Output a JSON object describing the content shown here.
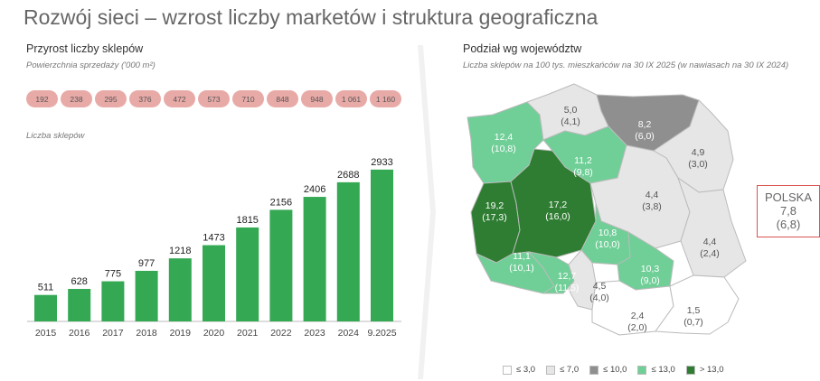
{
  "header": {
    "title": "Rozwój sieci – wzrost liczby marketów i struktura geograficzna"
  },
  "left": {
    "title": "Przyrost liczby sklepów",
    "area_label": "Powierzchnia sprzedaży ('000 m²)",
    "area_values": [
      "192",
      "238",
      "295",
      "376",
      "472",
      "573",
      "710",
      "848",
      "948",
      "1 061",
      "1 160"
    ],
    "count_label": "Liczba sklepów"
  },
  "right": {
    "title": "Podział wg województw",
    "subtitle": "Liczba sklepów na 100 tys. mieszkańców na 30 IX 2025 (w nawiasach na 30 IX 2024)",
    "polska_label": "POLSKA",
    "polska_value": "7,8",
    "polska_prev": "(6,8)",
    "legend": [
      {
        "label": "≤ 3,0",
        "color": "#ffffff"
      },
      {
        "label": "≤ 7,0",
        "color": "#e6e6e6"
      },
      {
        "label": "≤ 10,0",
        "color": "#8f8f8f"
      },
      {
        "label": "≤ 13,0",
        "color": "#6fcf97"
      },
      {
        "label": "> 13,0",
        "color": "#2e7d32"
      }
    ]
  },
  "chart_data": [
    {
      "type": "bar",
      "categories": [
        "2015",
        "2016",
        "2017",
        "2018",
        "2019",
        "2020",
        "2021",
        "2022",
        "2023",
        "2024",
        "9.2025"
      ],
      "values": [
        511,
        628,
        775,
        977,
        1218,
        1473,
        1815,
        2156,
        2406,
        2688,
        2933
      ],
      "title": "Liczba sklepów",
      "color": "#34a853"
    },
    {
      "type": "heatmap",
      "title": "Podział wg województw",
      "regions": [
        {
          "name": "zachodniopomorskie",
          "value": "12,4",
          "prev": "(10,8)",
          "bin": 3
        },
        {
          "name": "pomorskie",
          "value": "5,0",
          "prev": "(4,1)",
          "bin": 1
        },
        {
          "name": "warmińsko-mazurskie",
          "value": "8,2",
          "prev": "(6,0)",
          "bin": 2
        },
        {
          "name": "podlaskie",
          "value": "4,9",
          "prev": "(3,0)",
          "bin": 1
        },
        {
          "name": "kujawsko-pomorskie",
          "value": "11,2",
          "prev": "(9,8)",
          "bin": 3
        },
        {
          "name": "lubuskie",
          "value": "19,2",
          "prev": "(17,3)",
          "bin": 4
        },
        {
          "name": "wielkopolskie",
          "value": "17,2",
          "prev": "(16,0)",
          "bin": 4
        },
        {
          "name": "mazowieckie",
          "value": "4,4",
          "prev": "(3,8)",
          "bin": 1
        },
        {
          "name": "łódzkie",
          "value": "10,8",
          "prev": "(10,0)",
          "bin": 3
        },
        {
          "name": "lubelskie",
          "value": "4,4",
          "prev": "(2,4)",
          "bin": 1
        },
        {
          "name": "dolnośląskie",
          "value": "11,1",
          "prev": "(10,1)",
          "bin": 3
        },
        {
          "name": "opolskie",
          "value": "12,7",
          "prev": "(11,5)",
          "bin": 3
        },
        {
          "name": "śląskie",
          "value": "4,5",
          "prev": "(4,0)",
          "bin": 1
        },
        {
          "name": "świętokrzyskie",
          "value": "10,3",
          "prev": "(9,0)",
          "bin": 3
        },
        {
          "name": "małopolskie",
          "value": "2,4",
          "prev": "(2,0)",
          "bin": 0
        },
        {
          "name": "podkarpackie",
          "value": "1,5",
          "prev": "(0,7)",
          "bin": 0
        }
      ]
    }
  ]
}
